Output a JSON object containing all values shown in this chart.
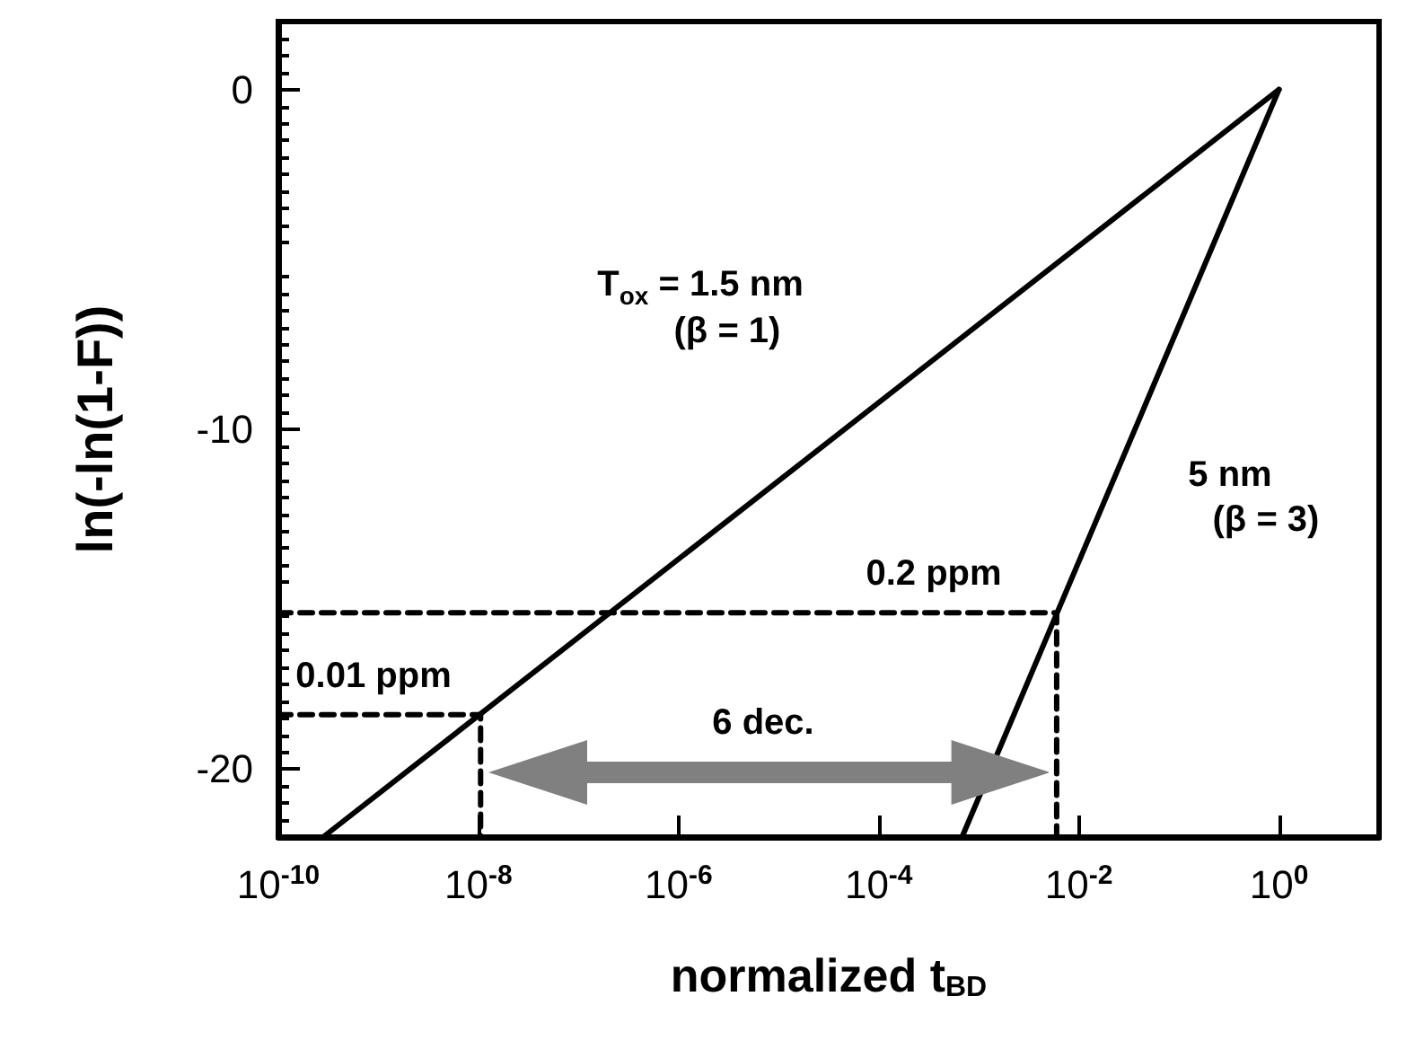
{
  "chart_data": {
    "type": "line",
    "xlabel": "normalized t$_{BD}$",
    "ylabel": "ln(-ln(1-F))",
    "log": "x",
    "grid": false,
    "marker": "none",
    "line_style": "solid",
    "xlim": [
      1e-10,
      10
    ],
    "xticks": [
      {
        "value": 1e-10,
        "label": "10$^{-10}$"
      },
      {
        "value": 1e-08,
        "label": "10$^{-8}$"
      },
      {
        "value": 1e-06,
        "label": "10$^{-6}$"
      },
      {
        "value": 0.0001,
        "label": "10$^{-4}$"
      },
      {
        "value": 0.01,
        "label": "10$^{-2}$"
      },
      {
        "value": 1,
        "label": "10$^{0}$"
      }
    ],
    "ylim": [
      -22,
      2
    ],
    "yticks": [
      -20,
      -10,
      0
    ],
    "series": [
      {
        "color": "#000000",
        "x": [
          2.8e-10,
          1
        ],
        "values": [
          -22,
          0
        ]
      },
      {
        "color": "#000000",
        "x": [
          0.00068,
          1
        ],
        "values": [
          -22,
          0
        ]
      },
      {
        "color": "#000000",
        "line_style": "dashed",
        "x": [
          1e-10,
          1.05e-08,
          1.05e-08
        ],
        "values": [
          -18.4,
          -18.4,
          -22
        ]
      },
      {
        "color": "#000000",
        "line_style": "dashed",
        "x": [
          1e-10,
          0.006,
          0.006
        ],
        "values": [
          -15.4,
          -15.4,
          -22
        ]
      }
    ],
    "annotations": [
      "T$_{ox}$ = 1.5 nm",
      "(β = 1)",
      "5 nm",
      "(β = 3)",
      "0.2 ppm",
      "0.01 ppm",
      "6 dec."
    ]
  }
}
